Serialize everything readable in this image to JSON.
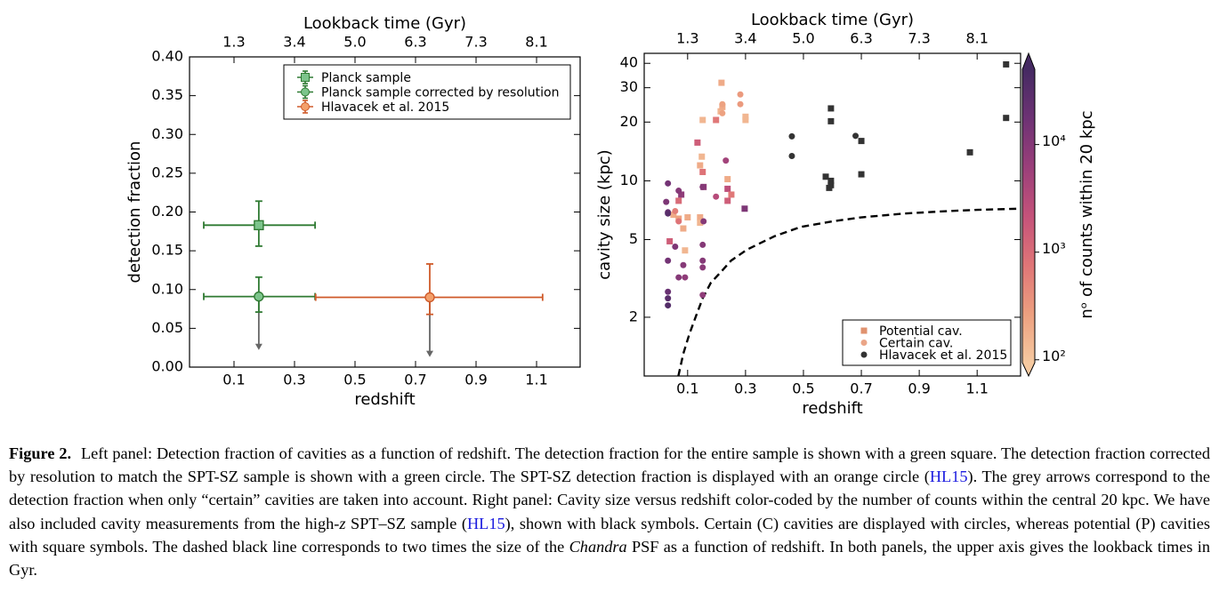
{
  "chart_data": [
    {
      "type": "errorbar",
      "xlabel": "redshift",
      "ylabel": "detection fraction",
      "x2label": "Lookback time (Gyr)",
      "xlim": [
        -0.047,
        1.244
      ],
      "ylim": [
        0,
        0.4
      ],
      "xticks": [
        0.1,
        0.3,
        0.5,
        0.7,
        0.9,
        1.1
      ],
      "x2ticks": [
        1.3,
        3.4,
        {
          "value": 5,
          "label": "5.0"
        },
        6.3,
        7.3,
        8.1
      ],
      "yticks": [
        {
          "value": 0,
          "label": "0.00"
        },
        0.05,
        {
          "value": 0.1,
          "label": "0.10"
        },
        0.15,
        {
          "value": 0.2,
          "label": "0.20"
        },
        0.25,
        {
          "value": 0.3,
          "label": "0.30"
        },
        0.35,
        {
          "value": 0.4,
          "label": "0.40"
        }
      ],
      "legend": "upper right",
      "series": [
        {
          "name": "Planck sample",
          "marker": "s",
          "color": "#2f7a32",
          "face": "#7cc48b",
          "x": [
            0.182
          ],
          "values": [
            0.183
          ],
          "xerr_minus": [
            0.182
          ],
          "xerr_plus": [
            0.186
          ],
          "yerr_minus": [
            0.027
          ],
          "yerr_plus": [
            0.031
          ]
        },
        {
          "name": "Planck sample corrected by resolution",
          "marker": "o",
          "color": "#2f7a32",
          "face": "#7cc48b",
          "x": [
            0.182
          ],
          "values": [
            0.091
          ],
          "xerr_minus": [
            0.182
          ],
          "xerr_plus": [
            0.186
          ],
          "yerr_minus": [
            0.02
          ],
          "yerr_plus": [
            0.025
          ],
          "certain": [
            0.022
          ],
          "arrow_color": "#666666"
        },
        {
          "name": "Hlavacek et al. 2015",
          "marker": "o",
          "color": "#cf5a2a",
          "face": "#f3a06b",
          "x": [
            0.747
          ],
          "values": [
            0.09
          ],
          "xerr_minus": [
            0.377
          ],
          "xerr_plus": [
            0.373
          ],
          "yerr_minus": [
            0.022
          ],
          "yerr_plus": [
            0.043
          ],
          "certain": [
            0.013
          ],
          "arrow_color": "#666666"
        }
      ]
    },
    {
      "type": "scatter",
      "ylog": true,
      "xlabel": "redshift",
      "ylabel": "cavity size (kpc)",
      "x2label": "Lookback time (Gyr)",
      "xlim": [
        -0.05,
        1.25
      ],
      "ylim": [
        1,
        45
      ],
      "xticks": [
        0.1,
        0.3,
        0.5,
        0.7,
        0.9,
        1.1
      ],
      "x2ticks": [
        1.3,
        3.4,
        {
          "value": 5,
          "label": "5.0"
        },
        6.3,
        7.3,
        8.1
      ],
      "yticks": [
        2,
        5,
        10,
        20,
        30,
        40
      ],
      "legend": "lower right",
      "colorbar": {
        "label": "nᵒ of counts within 20 kpc",
        "log": true,
        "lim": [
          94,
          50000
        ],
        "ticks": [
          {
            "value": 100,
            "label": "10²"
          },
          {
            "value": 1000,
            "label": "10³"
          },
          {
            "value": 10000,
            "label": "10⁴"
          }
        ],
        "colormap": [
          "#f5c9a0",
          "#ec9f7f",
          "#df7577",
          "#c4527a",
          "#9a3f7a",
          "#6d3274",
          "#452a62"
        ]
      },
      "series": [
        {
          "name": "Potential cav.",
          "marker": "s",
          "color": "#e0926f",
          "x": [
            0.038,
            0.078,
            0.069,
            0.051,
            0.085,
            0.091,
            0.1,
            0.069,
            0.134,
            0.152,
            0.143,
            0.149,
            0.152,
            0.143,
            0.143,
            0.198,
            0.217,
            0.214,
            0.22,
            0.238,
            0.238,
            0.238,
            0.251,
            0.3,
            0.3,
            0.297,
            0.155
          ],
          "values": [
            4.9,
            8.5,
            7.9,
            6.7,
            5.7,
            4.4,
            6.5,
            6.4,
            15.7,
            20.5,
            12,
            13.3,
            11.1,
            6.5,
            6.1,
            20.5,
            31.8,
            22.7,
            23.9,
            10.2,
            9.1,
            7.9,
            8.5,
            20.5,
            21.3,
            7.2,
            9.3
          ],
          "counts": [
            1500,
            8000,
            1000,
            200,
            200,
            150,
            200,
            250,
            1500,
            150,
            200,
            150,
            800,
            200,
            150,
            700,
            200,
            150,
            200,
            200,
            2500,
            1500,
            700,
            150,
            150,
            12000,
            8000
          ]
        },
        {
          "name": "Certain cav.",
          "marker": "o",
          "color": "#eaa587",
          "x": [
            0.032,
            0.026,
            0.032,
            0.032,
            0.057,
            0.069,
            0.032,
            0.032,
            0.032,
            0.032,
            0.057,
            0.069,
            0.091,
            0.085,
            0.069,
            0.152,
            0.155,
            0.152,
            0.152,
            0.152,
            0.152,
            0.198,
            0.232,
            0.22,
            0.22,
            0.282,
            0.282
          ],
          "values": [
            9.7,
            7.8,
            6.9,
            6.8,
            7.0,
            8.9,
            3.9,
            2.7,
            2.5,
            2.3,
            4.6,
            3.2,
            3.2,
            3.7,
            6.2,
            9.3,
            6.2,
            4.7,
            3.9,
            2.6,
            3.6,
            8.3,
            12.7,
            24.7,
            22.2,
            27.7,
            24.7
          ],
          "counts": [
            15000,
            12000,
            20000,
            30000,
            600,
            10000,
            15000,
            20000,
            30000,
            35000,
            12000,
            10000,
            8000,
            10000,
            800,
            10000,
            10000,
            10000,
            10000,
            8000,
            9000,
            3000,
            5000,
            250,
            250,
            300,
            300
          ]
        },
        {
          "name": "Hlavacek et al. 2015",
          "color": "#333333",
          "markers": [
            "o",
            "o",
            "o",
            "s",
            "s",
            "s",
            "s",
            "s",
            "s",
            "s",
            "s",
            "s",
            "s",
            "s"
          ],
          "x": [
            0.46,
            0.46,
            0.68,
            0.595,
            0.595,
            0.577,
            0.595,
            0.595,
            0.589,
            0.7,
            0.7,
            1.075,
            1.2,
            1.2
          ],
          "values": [
            16.9,
            13.4,
            17,
            23.5,
            20.2,
            10.5,
            10,
            9.5,
            9.2,
            16,
            10.8,
            14,
            39.5,
            21
          ]
        }
      ],
      "curve": {
        "color": "#000000",
        "style": "dashed",
        "x": [
          0.068,
          0.085,
          0.106,
          0.13,
          0.152,
          0.18,
          0.214,
          0.25,
          0.306,
          0.4,
          0.49,
          0.6,
          0.7,
          0.85,
          1.0,
          1.1,
          1.25
        ],
        "values": [
          1.0,
          1.3,
          1.64,
          2.05,
          2.5,
          3.0,
          3.4,
          3.9,
          4.45,
          5.2,
          5.8,
          6.2,
          6.5,
          6.8,
          7.0,
          7.1,
          7.2
        ]
      }
    }
  ],
  "caption": {
    "label": "Figure 2.",
    "parts": [
      "Left panel: Detection fraction of cavities as a function of redshift. The detection fraction for the entire sample is shown with a green square. The detection fraction corrected by resolution to match the SPT-SZ sample is shown with a green circle. The SPT-SZ detection fraction is displayed with an orange circle (",
      "HL15",
      "). The grey arrows correspond to the detection fraction when only “certain” cavities are taken into account. Right panel: Cavity size versus redshift color-coded by the number of counts within the central 20 kpc. We have also included cavity measurements from the high-",
      "z",
      " SPT–SZ sample (",
      "HL15",
      "), shown with black symbols. Certain (C) cavities are displayed with circles, whereas potential (P) cavities with square symbols. The dashed black line corresponds to two times the size of the ",
      "Chandra",
      " PSF as a function of redshift. In both panels, the upper axis gives the lookback times in Gyr."
    ]
  }
}
